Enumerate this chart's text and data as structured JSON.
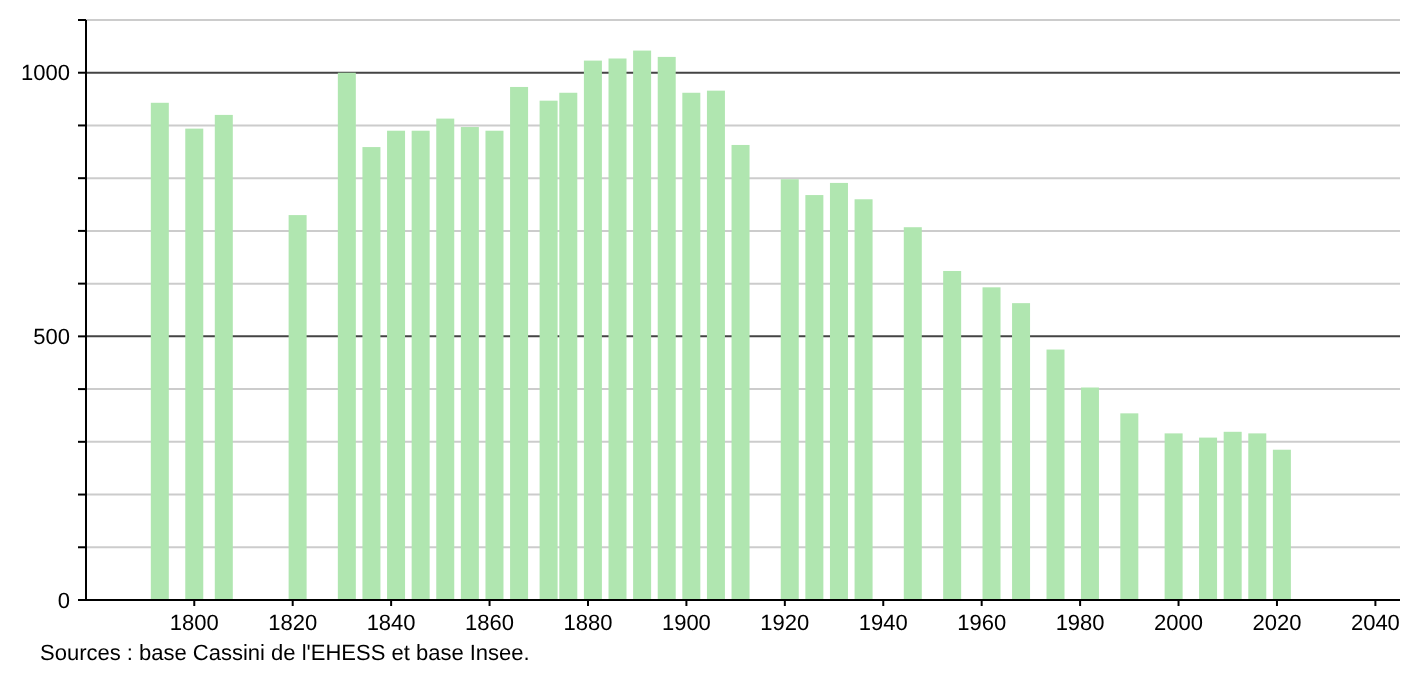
{
  "chart_data": {
    "type": "bar",
    "x": [
      1793,
      1800,
      1806,
      1821,
      1831,
      1836,
      1841,
      1846,
      1851,
      1856,
      1861,
      1866,
      1872,
      1876,
      1881,
      1886,
      1891,
      1896,
      1901,
      1906,
      1911,
      1921,
      1926,
      1931,
      1936,
      1946,
      1954,
      1962,
      1968,
      1975,
      1982,
      1990,
      1999,
      2006,
      2011,
      2016,
      2021
    ],
    "values": [
      943,
      894,
      920,
      730,
      1000,
      859,
      890,
      890,
      913,
      897,
      890,
      973,
      947,
      962,
      1023,
      1027,
      1042,
      1030,
      962,
      966,
      863,
      798,
      768,
      791,
      760,
      707,
      624,
      593,
      563,
      475,
      403,
      354,
      316,
      308,
      319,
      316,
      285
    ],
    "color": "#b0e6b0",
    "xlim": [
      1778,
      2045
    ],
    "xticks": [
      1800,
      1820,
      1840,
      1860,
      1880,
      1900,
      1920,
      1940,
      1960,
      1980,
      2000,
      2020,
      2040
    ],
    "ylim": [
      0,
      1100
    ],
    "yticks": [
      0,
      {
        "value": 100,
        "label": null
      },
      {
        "value": 200,
        "label": null
      },
      {
        "value": 300,
        "label": null
      },
      {
        "value": 400,
        "label": null
      },
      500,
      {
        "value": 600,
        "label": null
      },
      {
        "value": 700,
        "label": null
      },
      {
        "value": 800,
        "label": null
      },
      {
        "value": 900,
        "label": null
      },
      1000,
      {
        "value": 1100,
        "label": null
      }
    ],
    "grid": true,
    "annotations": [
      "Sources : base Cassini de l'EHESS et base Insee."
    ]
  }
}
